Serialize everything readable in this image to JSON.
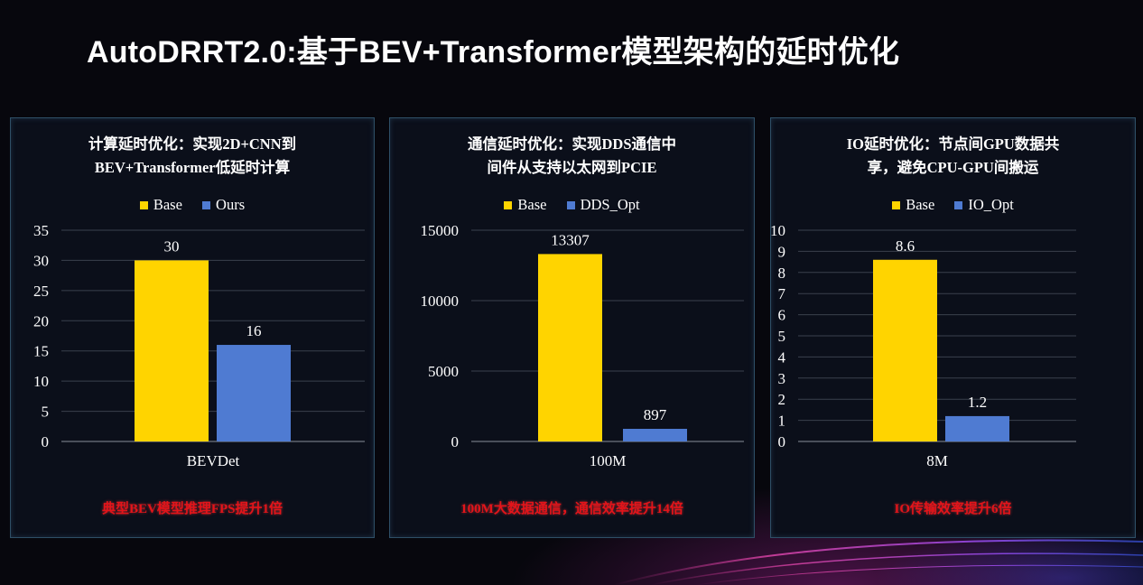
{
  "title": "AutoDRRT2.0:基于BEV+Transformer模型架构的延时优化",
  "colors": {
    "base": "#ffd400",
    "opt": "#4f7bd2",
    "caption": "#e3141a",
    "background": "#07070d"
  },
  "panels": [
    {
      "title_lines": [
        "计算延时优化：实现2D+CNN到",
        "BEV+Transformer低延时计算"
      ],
      "caption": "典型BEV模型推理FPS提升1倍"
    },
    {
      "title_lines": [
        "通信延时优化：实现DDS通信中",
        "间件从支持以太网到PCIE"
      ],
      "caption": "100M大数据通信，通信效率提升14倍"
    },
    {
      "title_lines": [
        "IO延时优化：节点间GPU数据共",
        "享，避免CPU-GPU间搬运"
      ],
      "caption": "IO传输效率提升6倍"
    }
  ],
  "chart_data": [
    {
      "type": "bar",
      "categories": [
        "BEVDet"
      ],
      "series": [
        {
          "name": "Base",
          "values": [
            30
          ]
        },
        {
          "name": "Ours",
          "values": [
            16
          ]
        }
      ],
      "data_labels": [
        "30",
        "16"
      ],
      "ylim": [
        0,
        35
      ],
      "yticks": [
        "0",
        "5",
        "10",
        "15",
        "20",
        "25",
        "30",
        "35"
      ],
      "ytick_values": [
        0,
        5,
        10,
        15,
        20,
        25,
        30,
        35
      ],
      "grid": true,
      "legend": "top"
    },
    {
      "type": "bar",
      "categories": [
        "100M"
      ],
      "series": [
        {
          "name": "Base",
          "values": [
            13307
          ]
        },
        {
          "name": "DDS_Opt",
          "values": [
            897
          ]
        }
      ],
      "data_labels": [
        "13307",
        "897"
      ],
      "ylim": [
        0,
        15000
      ],
      "yticks": [
        "0",
        "5000",
        "10000",
        "15000"
      ],
      "ytick_values": [
        0,
        5000,
        10000,
        15000
      ],
      "grid": true,
      "legend": "top"
    },
    {
      "type": "bar",
      "categories": [
        "8M"
      ],
      "series": [
        {
          "name": "Base",
          "values": [
            8.6
          ]
        },
        {
          "name": "IO_Opt",
          "values": [
            1.2
          ]
        }
      ],
      "data_labels": [
        "8.6",
        "1.2"
      ],
      "ylim": [
        0,
        10
      ],
      "yticks": [
        "0",
        "1",
        "2",
        "3",
        "4",
        "5",
        "6",
        "7",
        "8",
        "9",
        "10"
      ],
      "ytick_values": [
        0,
        1,
        2,
        3,
        4,
        5,
        6,
        7,
        8,
        9,
        10
      ],
      "grid": true,
      "legend": "top"
    }
  ]
}
